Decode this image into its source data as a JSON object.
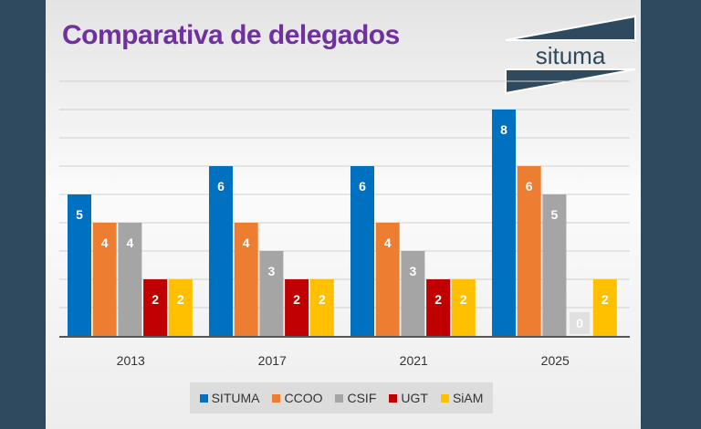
{
  "chart_data": {
    "type": "bar",
    "title": "Comparativa de delegados",
    "categories": [
      "2013",
      "2017",
      "2021",
      "2025"
    ],
    "series": [
      {
        "name": "SITUMA",
        "color": "#0070c0",
        "values": [
          5,
          6,
          6,
          8
        ]
      },
      {
        "name": "CCOO",
        "color": "#ed7d31",
        "values": [
          4,
          4,
          4,
          6
        ]
      },
      {
        "name": "CSIF",
        "color": "#a5a5a5",
        "values": [
          4,
          3,
          3,
          5
        ]
      },
      {
        "name": "UGT",
        "color": "#c00000",
        "values": [
          2,
          2,
          2,
          0
        ]
      },
      {
        "name": "SiAM",
        "color": "#ffc000",
        "values": [
          2,
          2,
          2,
          2
        ]
      }
    ],
    "ylim": [
      0,
      9
    ],
    "grid": true,
    "legend": "bottom",
    "xlabel": "",
    "ylabel": ""
  },
  "logo": {
    "text": "situma"
  }
}
